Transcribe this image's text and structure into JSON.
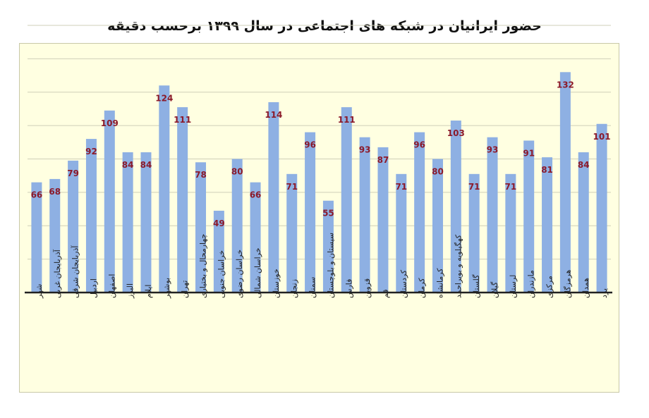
{
  "chart_data": {
    "type": "bar",
    "title": "حضور ایرانیان در شبکه های اجتماعی در سال ۱۳۹۹ برحسب دقیقه",
    "xlabel": "",
    "ylabel": "",
    "ylim": [
      0,
      160
    ],
    "grid": true,
    "legend": "none",
    "bar_color": "#8eb0e3",
    "label_color": "#8b1a2a",
    "categories": [
      "شهر",
      "آذربایجان غربی",
      "آذربایجان شرقی",
      "اردبیل",
      "اصفهان",
      "البرز",
      "ایلام",
      "بوشهر",
      "تهران",
      "چهارمحال و بختیاری",
      "خراسان جنوبی",
      "خراسان رضوی",
      "خراسان شمالی",
      "خوزستان",
      "زنجان",
      "سمنان",
      "سیستان و بلوچستان",
      "فارس",
      "قزوین",
      "قم",
      "کردستان",
      "کرمان",
      "کرمانشاه",
      "کهگیلویه و بویراحمد",
      "گلستان",
      "گیلان",
      "لرستان",
      "مازندران",
      "مرکزی",
      "هرمزگان",
      "همدان",
      "یزد"
    ],
    "values": [
      66,
      68,
      79,
      92,
      109,
      84,
      84,
      124,
      111,
      78,
      49,
      80,
      66,
      114,
      71,
      96,
      55,
      111,
      93,
      87,
      71,
      96,
      80,
      103,
      71,
      93,
      71,
      91,
      81,
      132,
      84,
      101
    ]
  }
}
